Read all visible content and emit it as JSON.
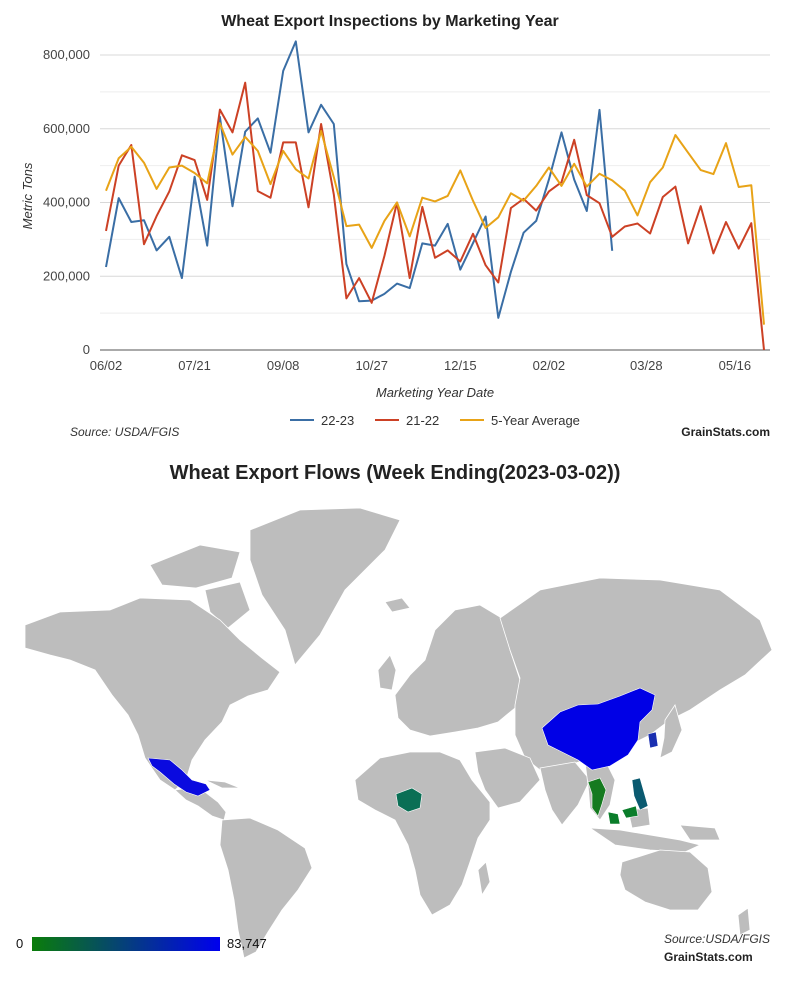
{
  "chart_data": {
    "type": "line",
    "title": "Wheat Export Inspections by Marketing Year",
    "xlabel": "Marketing Year Date",
    "ylabel": "Metric Tons",
    "ylim": [
      0,
      800000
    ],
    "y_ticks": [
      "0",
      "200,000",
      "400,000",
      "600,000",
      "800,000"
    ],
    "y_tick_values": [
      0,
      200000,
      400000,
      600000,
      800000
    ],
    "x_ticks": [
      {
        "label": "06/02",
        "week": 0
      },
      {
        "label": "07/21",
        "week": 7
      },
      {
        "label": "09/08",
        "week": 14
      },
      {
        "label": "10/27",
        "week": 21
      },
      {
        "label": "12/15",
        "week": 28
      },
      {
        "label": "02/02",
        "week": 35
      },
      {
        "label": "03/28",
        "week": 42.7
      },
      {
        "label": "05/16",
        "week": 49.7
      }
    ],
    "grid": true,
    "legend_position": "bottom",
    "series": [
      {
        "name": "22-23",
        "color": "#3a6ea5",
        "values": [
          225000,
          412000,
          347000,
          352000,
          270000,
          307000,
          195000,
          470000,
          283000,
          632000,
          390000,
          592000,
          628000,
          535000,
          757000,
          837000,
          590000,
          665000,
          613000,
          233000,
          132000,
          134000,
          152000,
          180000,
          168000,
          289000,
          283000,
          342000,
          218000,
          290000,
          362000,
          87000,
          212000,
          318000,
          350000,
          462000,
          590000,
          462000,
          377000,
          651000,
          269000
        ]
      },
      {
        "name": "21-22",
        "color": "#cc4125",
        "values": [
          323000,
          500000,
          556000,
          287000,
          363000,
          430000,
          528000,
          515000,
          407000,
          652000,
          590000,
          725000,
          431000,
          413000,
          563000,
          563000,
          387000,
          613000,
          422000,
          140000,
          195000,
          128000,
          255000,
          400000,
          195000,
          388000,
          250000,
          270000,
          240000,
          315000,
          230000,
          183000,
          385000,
          410000,
          378000,
          430000,
          455000,
          570000,
          420000,
          398000,
          307000,
          335000,
          343000,
          316000,
          415000,
          443000,
          289000,
          390000,
          262000,
          347000,
          275000,
          344000,
          0
        ]
      },
      {
        "name": "5-Year Average",
        "color": "#e8a317",
        "values": [
          432000,
          520000,
          551000,
          508000,
          437000,
          495000,
          500000,
          480000,
          452000,
          615000,
          530000,
          578000,
          540000,
          450000,
          540000,
          490000,
          465000,
          594000,
          469000,
          336000,
          340000,
          277000,
          350000,
          400000,
          308000,
          413000,
          403000,
          418000,
          487000,
          405000,
          331000,
          360000,
          425000,
          405000,
          445000,
          495000,
          445000,
          505000,
          443000,
          478000,
          460000,
          432000,
          365000,
          455000,
          495000,
          583000,
          535000,
          488000,
          477000,
          561000,
          442000,
          447000,
          69000
        ]
      }
    ],
    "source": "Source: USDA/FGIS",
    "brand": "GrainStats.com"
  },
  "map": {
    "title": "Wheat Export Flows (Week Ending(2023-03-02))",
    "scale_min": "0",
    "scale_max": "83,747",
    "scale_colors": [
      "#0a7d0a",
      "#0000ee"
    ],
    "base_color": "#bdbdbd",
    "highlighted": [
      {
        "name": "Mexico",
        "color": "#0a0adf"
      },
      {
        "name": "China",
        "color": "#0000e6"
      },
      {
        "name": "South Korea",
        "color": "#1a2fb0"
      },
      {
        "name": "Nigeria",
        "color": "#0a6f55"
      },
      {
        "name": "Thailand",
        "color": "#157a20"
      },
      {
        "name": "Philippines",
        "color": "#0a5a70"
      },
      {
        "name": "Malaysia",
        "color": "#0a7d2a"
      }
    ],
    "source": "Source:USDA/FGIS",
    "brand": "GrainStats.com"
  }
}
